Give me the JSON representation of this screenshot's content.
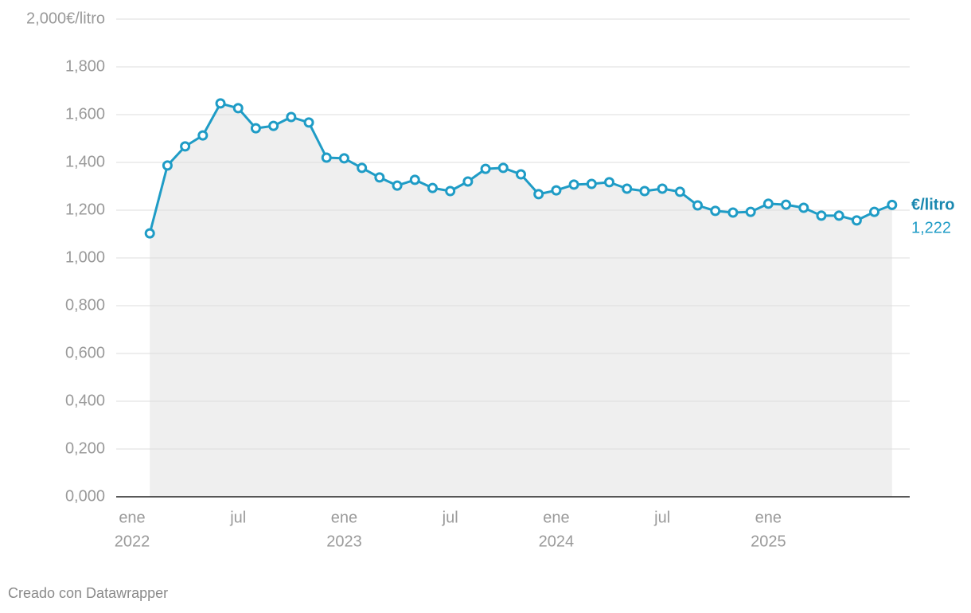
{
  "chart_data": {
    "type": "line",
    "x": [
      "2022-02",
      "2022-03",
      "2022-04",
      "2022-05",
      "2022-06",
      "2022-07",
      "2022-08",
      "2022-09",
      "2022-10",
      "2022-11",
      "2022-12",
      "2023-01",
      "2023-02",
      "2023-03",
      "2023-04",
      "2023-05",
      "2023-06",
      "2023-07",
      "2023-08",
      "2023-09",
      "2023-10",
      "2023-11",
      "2023-12",
      "2024-01",
      "2024-02",
      "2024-03",
      "2024-04",
      "2024-05",
      "2024-06",
      "2024-07",
      "2024-08",
      "2024-09",
      "2024-10",
      "2024-11",
      "2024-12",
      "2025-01",
      "2025-02",
      "2025-03",
      "2025-04",
      "2025-05",
      "2025-06",
      "2025-07",
      "2025-08"
    ],
    "series": [
      {
        "name": "€/litro",
        "color": "#1f9cc6",
        "values": [
          1.103,
          1.387,
          1.467,
          1.513,
          1.647,
          1.627,
          1.543,
          1.553,
          1.59,
          1.567,
          1.42,
          1.417,
          1.377,
          1.337,
          1.303,
          1.327,
          1.293,
          1.28,
          1.32,
          1.373,
          1.377,
          1.35,
          1.267,
          1.283,
          1.307,
          1.31,
          1.317,
          1.29,
          1.28,
          1.29,
          1.277,
          1.22,
          1.197,
          1.19,
          1.193,
          1.227,
          1.223,
          1.21,
          1.177,
          1.177,
          1.157,
          1.193,
          1.222
        ],
        "value_labels": [
          null,
          null,
          null,
          null,
          null,
          null,
          null,
          null,
          null,
          null,
          null,
          null,
          null,
          null,
          null,
          null,
          null,
          null,
          null,
          null,
          null,
          null,
          null,
          null,
          null,
          null,
          null,
          null,
          null,
          null,
          null,
          null,
          null,
          null,
          null,
          null,
          null,
          null,
          null,
          null,
          null,
          null,
          "1,222"
        ]
      }
    ],
    "area_color": "#efefef",
    "xlim": [
      "2022-01",
      "2025-09"
    ],
    "xticks": [
      {
        "value": "2022-01",
        "label": "ene",
        "year": "2022"
      },
      {
        "value": "2022-07",
        "label": "jul"
      },
      {
        "value": "2023-01",
        "label": "ene",
        "year": "2023"
      },
      {
        "value": "2023-07",
        "label": "jul"
      },
      {
        "value": "2024-01",
        "label": "ene",
        "year": "2024"
      },
      {
        "value": "2024-07",
        "label": "jul"
      },
      {
        "value": "2025-01",
        "label": "ene",
        "year": "2025"
      }
    ],
    "ylim": [
      0,
      2
    ],
    "yticks": [
      {
        "value": 0,
        "label": "0,000"
      },
      {
        "value": 0.2,
        "label": "0,200"
      },
      {
        "value": 0.4,
        "label": "0,400"
      },
      {
        "value": 0.6,
        "label": "0,600"
      },
      {
        "value": 0.8,
        "label": "0,800"
      },
      {
        "value": 1,
        "label": "1,000"
      },
      {
        "value": 1.2,
        "label": "1,200"
      },
      {
        "value": 1.4,
        "label": "1,400"
      },
      {
        "value": 1.6,
        "label": "1,600"
      },
      {
        "value": 1.8,
        "label": "1,800"
      },
      {
        "value": 2,
        "label": "2,000€/litro"
      }
    ],
    "grid": true,
    "credit": "Creado con Datawrapper"
  }
}
